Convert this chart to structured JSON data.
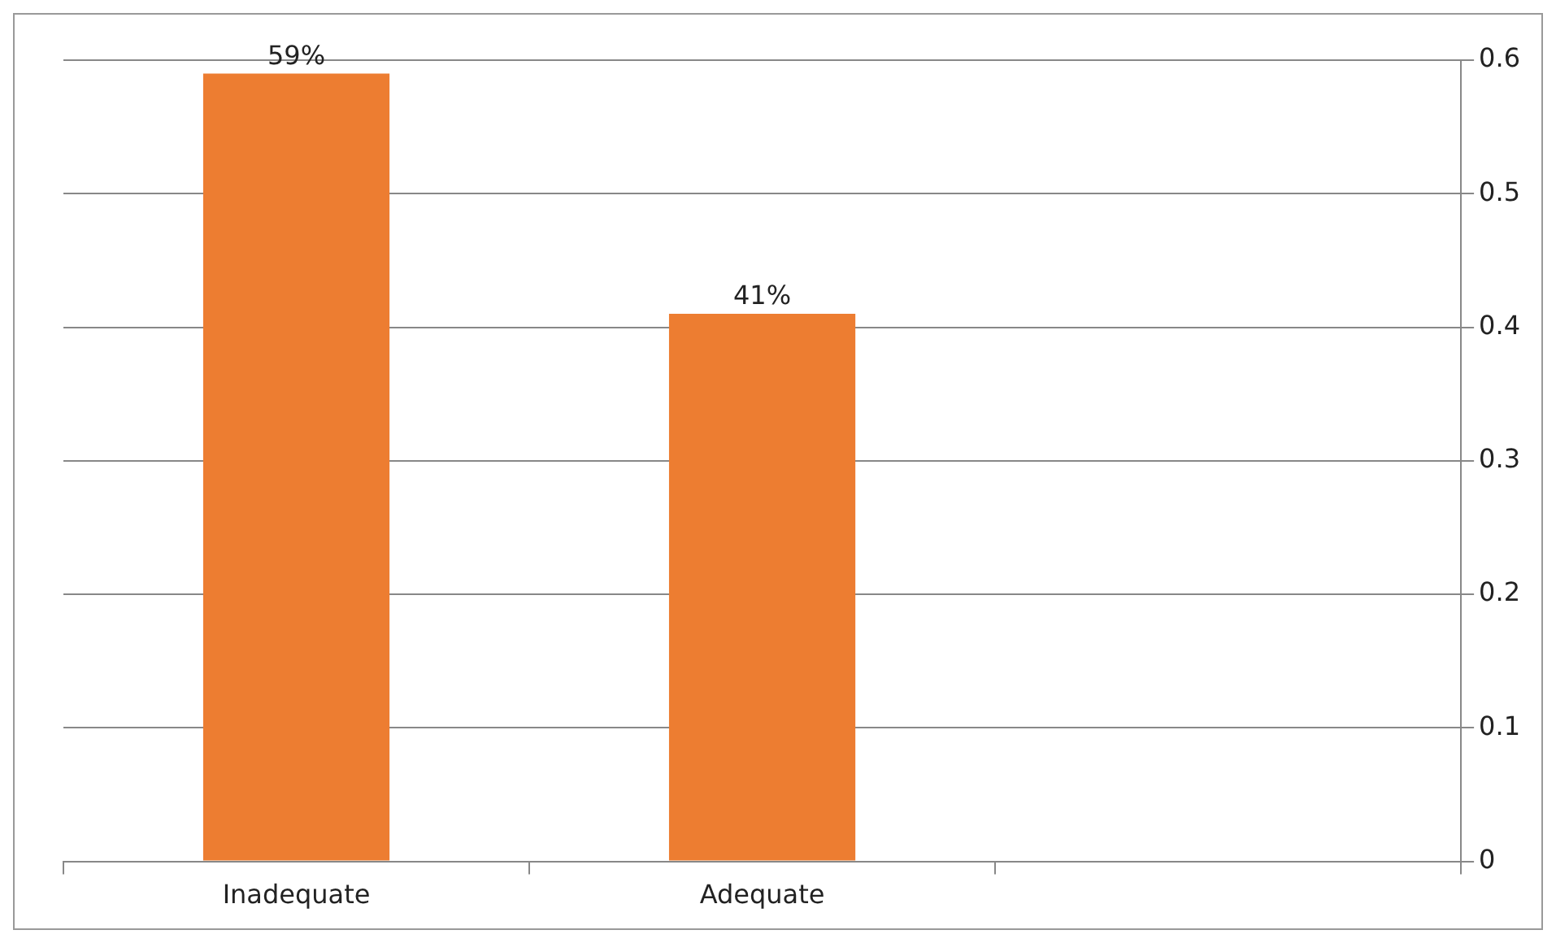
{
  "chart_data": {
    "type": "bar",
    "categories": [
      "Inadequate",
      "Adequate",
      null
    ],
    "series": [
      {
        "color": "#ed7d31",
        "values": [
          0.59,
          0.41,
          null
        ],
        "value_labels": [
          "59%",
          "41%",
          null
        ]
      }
    ],
    "ylim": [
      0,
      0.6
    ],
    "yticks": [
      0,
      0.1,
      0.2,
      0.3,
      0.4,
      0.5,
      0.6
    ],
    "grid": "y",
    "legend": false
  }
}
